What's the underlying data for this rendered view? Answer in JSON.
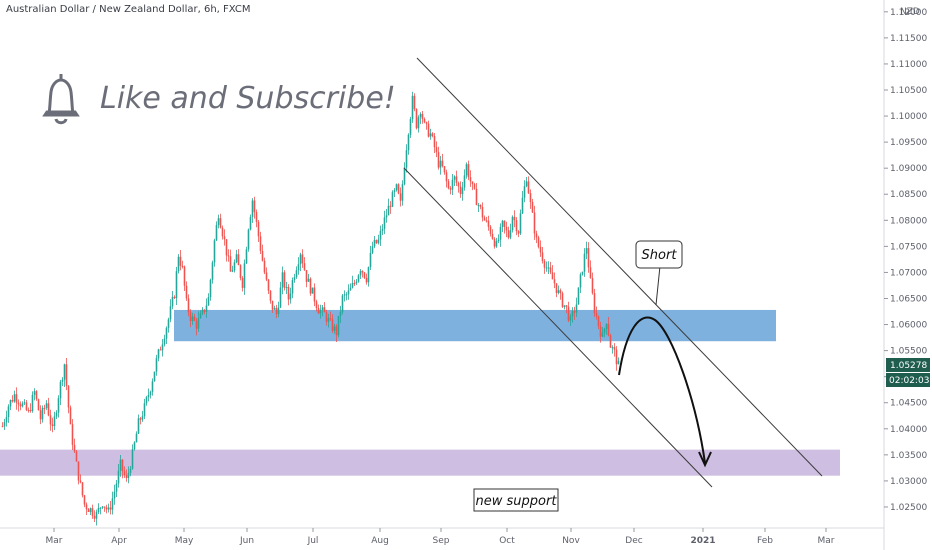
{
  "chart_data": {
    "type": "candlestick",
    "title": "Australian Dollar / New Zealand Dollar, 6h, FXCM",
    "currency": "NZD",
    "y_ticks": [
      "1.12000",
      "1.11500",
      "1.11000",
      "1.10500",
      "1.10000",
      "1.09500",
      "1.09000",
      "1.08500",
      "1.08000",
      "1.07500",
      "1.07000",
      "1.06500",
      "1.06000",
      "1.05500",
      "1.05000",
      "1.04500",
      "1.04000",
      "1.03500",
      "1.03000",
      "1.02500"
    ],
    "ylim": [
      1.0225,
      1.1215
    ],
    "x_ticks": [
      "Mar",
      "Apr",
      "May",
      "Jun",
      "Jul",
      "Aug",
      "Sep",
      "Oct",
      "Nov",
      "Dec",
      "2021",
      "Feb",
      "Mar"
    ],
    "price_series": [
      {
        "d": 0,
        "c": 1.0405
      },
      {
        "d": 6,
        "c": 1.0445
      },
      {
        "d": 12,
        "c": 1.0465
      },
      {
        "d": 20,
        "c": 1.0445
      },
      {
        "d": 26,
        "c": 1.043
      },
      {
        "d": 32,
        "c": 1.047
      },
      {
        "d": 38,
        "c": 1.042
      },
      {
        "d": 44,
        "c": 1.045
      },
      {
        "d": 50,
        "c": 1.0395
      },
      {
        "d": 56,
        "c": 1.0465
      },
      {
        "d": 62,
        "c": 1.0525
      },
      {
        "d": 68,
        "c": 1.04
      },
      {
        "d": 74,
        "c": 1.033
      },
      {
        "d": 78,
        "c": 1.029
      },
      {
        "d": 82,
        "c": 1.0255
      },
      {
        "d": 88,
        "c": 1.0245
      },
      {
        "d": 94,
        "c": 1.0235
      },
      {
        "d": 100,
        "c": 1.026
      },
      {
        "d": 106,
        "c": 1.024
      },
      {
        "d": 112,
        "c": 1.028
      },
      {
        "d": 118,
        "c": 1.033
      },
      {
        "d": 124,
        "c": 1.03
      },
      {
        "d": 130,
        "c": 1.035
      },
      {
        "d": 136,
        "c": 1.041
      },
      {
        "d": 142,
        "c": 1.044
      },
      {
        "d": 148,
        "c": 1.048
      },
      {
        "d": 154,
        "c": 1.053
      },
      {
        "d": 160,
        "c": 1.057
      },
      {
        "d": 166,
        "c": 1.061
      },
      {
        "d": 172,
        "c": 1.066
      },
      {
        "d": 176,
        "c": 1.0735
      },
      {
        "d": 180,
        "c": 1.0705
      },
      {
        "d": 184,
        "c": 1.064
      },
      {
        "d": 188,
        "c": 1.0615
      },
      {
        "d": 194,
        "c": 1.06
      },
      {
        "d": 200,
        "c": 1.062
      },
      {
        "d": 206,
        "c": 1.065
      },
      {
        "d": 212,
        "c": 1.076
      },
      {
        "d": 216,
        "c": 1.0815
      },
      {
        "d": 222,
        "c": 1.076
      },
      {
        "d": 228,
        "c": 1.07
      },
      {
        "d": 234,
        "c": 1.0725
      },
      {
        "d": 240,
        "c": 1.068
      },
      {
        "d": 246,
        "c": 1.079
      },
      {
        "d": 250,
        "c": 1.084
      },
      {
        "d": 256,
        "c": 1.077
      },
      {
        "d": 262,
        "c": 1.07
      },
      {
        "d": 268,
        "c": 1.064
      },
      {
        "d": 274,
        "c": 1.062
      },
      {
        "d": 280,
        "c": 1.069
      },
      {
        "d": 286,
        "c": 1.065
      },
      {
        "d": 292,
        "c": 1.07
      },
      {
        "d": 298,
        "c": 1.074
      },
      {
        "d": 304,
        "c": 1.069
      },
      {
        "d": 310,
        "c": 1.066
      },
      {
        "d": 316,
        "c": 1.063
      },
      {
        "d": 322,
        "c": 1.062
      },
      {
        "d": 328,
        "c": 1.06
      },
      {
        "d": 334,
        "c": 1.0585
      },
      {
        "d": 340,
        "c": 1.065
      },
      {
        "d": 346,
        "c": 1.066
      },
      {
        "d": 352,
        "c": 1.068
      },
      {
        "d": 358,
        "c": 1.071
      },
      {
        "d": 364,
        "c": 1.069
      },
      {
        "d": 370,
        "c": 1.075
      },
      {
        "d": 376,
        "c": 1.076
      },
      {
        "d": 382,
        "c": 1.08
      },
      {
        "d": 388,
        "c": 1.0835
      },
      {
        "d": 394,
        "c": 1.086
      },
      {
        "d": 398,
        "c": 1.083
      },
      {
        "d": 402,
        "c": 1.091
      },
      {
        "d": 406,
        "c": 1.0975
      },
      {
        "d": 410,
        "c": 1.103
      },
      {
        "d": 414,
        "c": 1.0985
      },
      {
        "d": 418,
        "c": 1.1015
      },
      {
        "d": 422,
        "c": 1.098
      },
      {
        "d": 428,
        "c": 1.0965
      },
      {
        "d": 432,
        "c": 1.094
      },
      {
        "d": 436,
        "c": 1.091
      },
      {
        "d": 440,
        "c": 1.09
      },
      {
        "d": 446,
        "c": 1.086
      },
      {
        "d": 452,
        "c": 1.088
      },
      {
        "d": 458,
        "c": 1.0855
      },
      {
        "d": 464,
        "c": 1.0905
      },
      {
        "d": 470,
        "c": 1.086
      },
      {
        "d": 476,
        "c": 1.083
      },
      {
        "d": 482,
        "c": 1.08
      },
      {
        "d": 488,
        "c": 1.078
      },
      {
        "d": 494,
        "c": 1.075
      },
      {
        "d": 500,
        "c": 1.079
      },
      {
        "d": 506,
        "c": 1.077
      },
      {
        "d": 510,
        "c": 1.081
      },
      {
        "d": 516,
        "c": 1.078
      },
      {
        "d": 520,
        "c": 1.084
      },
      {
        "d": 524,
        "c": 1.0885
      },
      {
        "d": 528,
        "c": 1.083
      },
      {
        "d": 534,
        "c": 1.076
      },
      {
        "d": 540,
        "c": 1.073
      },
      {
        "d": 546,
        "c": 1.07
      },
      {
        "d": 552,
        "c": 1.068
      },
      {
        "d": 558,
        "c": 1.065
      },
      {
        "d": 564,
        "c": 1.063
      },
      {
        "d": 568,
        "c": 1.0605
      },
      {
        "d": 574,
        "c": 1.064
      },
      {
        "d": 580,
        "c": 1.071
      },
      {
        "d": 584,
        "c": 1.075
      },
      {
        "d": 588,
        "c": 1.068
      },
      {
        "d": 592,
        "c": 1.063
      },
      {
        "d": 596,
        "c": 1.06
      },
      {
        "d": 600,
        "c": 1.0575
      },
      {
        "d": 604,
        "c": 1.061
      },
      {
        "d": 608,
        "c": 1.056
      },
      {
        "d": 612,
        "c": 1.0545
      },
      {
        "d": 616,
        "c": 1.052
      }
    ],
    "annotations": {
      "resistance_zone": [
        1.0568,
        1.0628
      ],
      "support_zone": [
        1.031,
        1.036
      ]
    }
  },
  "header": {
    "title": "Australian Dollar / New Zealand Dollar, 6h, FXCM",
    "currency": "NZD"
  },
  "overlay": {
    "like_text": "Like and Subscribe!",
    "bell_icon": "bell-icon",
    "short_label": "Short",
    "support_label": "new support"
  },
  "price_axis": {
    "last_price": "1.05278",
    "countdown": "02:02:03"
  },
  "colors": {
    "up": "#26a69a",
    "down": "#ef5350",
    "resistance_zone": "#5b9bd5",
    "support_zone": "#c6b3dd",
    "badge": "#1f5e4f"
  }
}
